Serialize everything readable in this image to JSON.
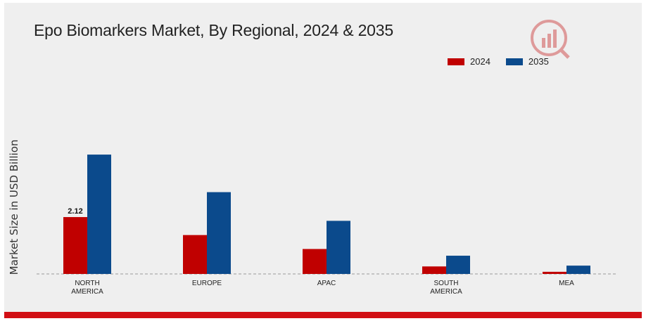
{
  "chart_data": {
    "type": "bar",
    "title": "Epo Biomarkers Market, By Regional, 2024 & 2035",
    "ylabel": "Market Size in USD Billion",
    "xlabel": "",
    "categories": [
      [
        "NORTH",
        "AMERICA"
      ],
      [
        "EUROPE"
      ],
      [
        "APAC"
      ],
      [
        "SOUTH",
        "AMERICA"
      ],
      [
        "MEA"
      ]
    ],
    "series": [
      {
        "name": "2024",
        "color": "#c00000",
        "values": [
          2.12,
          1.45,
          0.93,
          0.28,
          0.08
        ]
      },
      {
        "name": "2035",
        "color": "#0b4a8c",
        "values": [
          4.45,
          3.05,
          1.98,
          0.68,
          0.31
        ]
      }
    ],
    "data_labels": [
      {
        "series": 0,
        "index": 0,
        "text": "2.12"
      }
    ],
    "ylim": [
      0,
      5.5
    ],
    "grid": false,
    "legend_position": "top-right"
  }
}
